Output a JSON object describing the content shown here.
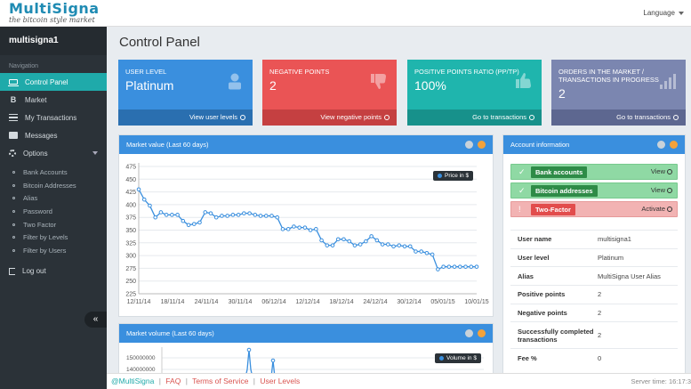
{
  "header": {
    "logo_main": "MultiSigna",
    "logo_sub": "the bitcoin style market",
    "language_label": "Language"
  },
  "sidebar": {
    "username": "multisigna1",
    "nav_label": "Navigation",
    "items": [
      {
        "label": "Control Panel",
        "icon": "monitor-icon"
      },
      {
        "label": "Market",
        "icon": "bitcoin-icon"
      },
      {
        "label": "My Transactions",
        "icon": "list-icon"
      },
      {
        "label": "Messages",
        "icon": "envelope-icon"
      },
      {
        "label": "Options",
        "icon": "gear-icon"
      }
    ],
    "sub_items": [
      "Bank Accounts",
      "Bitcoin Addresses",
      "Alias",
      "Password",
      "Two Factor",
      "Filter by Levels",
      "Filter by Users"
    ],
    "logout_label": "Log out",
    "collapse_glyph": "«"
  },
  "main": {
    "title": "Control Panel",
    "stats": [
      {
        "label": "User Level",
        "value": "Platinum",
        "link": "View user levels",
        "color": "#3a8fde"
      },
      {
        "label": "Negative Points",
        "value": "2",
        "link": "View negative points",
        "color": "#ea5455"
      },
      {
        "label": "Positive points ratio (pp/tp)",
        "value": "100%",
        "link": "Go to transactions",
        "color": "#1fb5ad"
      },
      {
        "label": "Orders in the market / transactions in progress",
        "value": "2",
        "link": "Go to transactions",
        "color": "#7b86b0"
      }
    ]
  },
  "market_value": {
    "title": "Market value (Last 60 days)",
    "legend": "Price in $"
  },
  "market_volume": {
    "title": "Market volume (Last 60 days)",
    "legend": "Volume in $",
    "y_ticks": [
      "150000000",
      "140000000"
    ]
  },
  "account": {
    "title": "Account information",
    "status_rows": [
      {
        "tag": "Bank accounts",
        "action": "View",
        "state": "ok"
      },
      {
        "tag": "Bitcoin addresses",
        "action": "View",
        "state": "ok"
      },
      {
        "tag": "Two-Factor",
        "action": "Activate",
        "state": "bad"
      }
    ],
    "info": [
      {
        "k": "User name",
        "v": "multisigna1"
      },
      {
        "k": "User level",
        "v": "Platinum"
      },
      {
        "k": "Alias",
        "v": "MultiSigna User Alias"
      },
      {
        "k": "Positive points",
        "v": "2"
      },
      {
        "k": "Negative points",
        "v": "2"
      },
      {
        "k": "Successfully completed transactions",
        "v": "2"
      },
      {
        "k": "Fee %",
        "v": "0"
      }
    ]
  },
  "footer": {
    "brand": "@MultiSigna",
    "links": [
      "FAQ",
      "Terms of Service",
      "User Levels"
    ],
    "server_time": "Server time: 16:17:3"
  },
  "chart_data": {
    "type": "line",
    "title": "Market value (Last 60 days)",
    "xlabel": "",
    "ylabel": "",
    "legend": "Price in $",
    "ylim": [
      225,
      475
    ],
    "y_ticks": [
      225,
      250,
      275,
      300,
      325,
      350,
      375,
      400,
      425,
      450,
      475
    ],
    "x_tick_labels": [
      "12/11/14",
      "18/11/14",
      "24/11/14",
      "30/11/14",
      "06/12/14",
      "12/12/14",
      "18/12/14",
      "24/12/14",
      "30/12/14",
      "05/01/15",
      "10/01/15"
    ],
    "series": [
      {
        "name": "Price in $",
        "values": [
          430,
          410,
          398,
          375,
          385,
          380,
          380,
          380,
          368,
          360,
          362,
          365,
          385,
          383,
          375,
          378,
          378,
          380,
          380,
          383,
          383,
          380,
          378,
          378,
          378,
          375,
          352,
          352,
          357,
          355,
          355,
          350,
          352,
          330,
          320,
          320,
          332,
          332,
          328,
          320,
          322,
          328,
          338,
          330,
          322,
          322,
          318,
          320,
          318,
          318,
          308,
          308,
          305,
          302,
          273,
          278,
          278,
          278,
          278,
          278,
          278,
          278
        ]
      }
    ]
  }
}
